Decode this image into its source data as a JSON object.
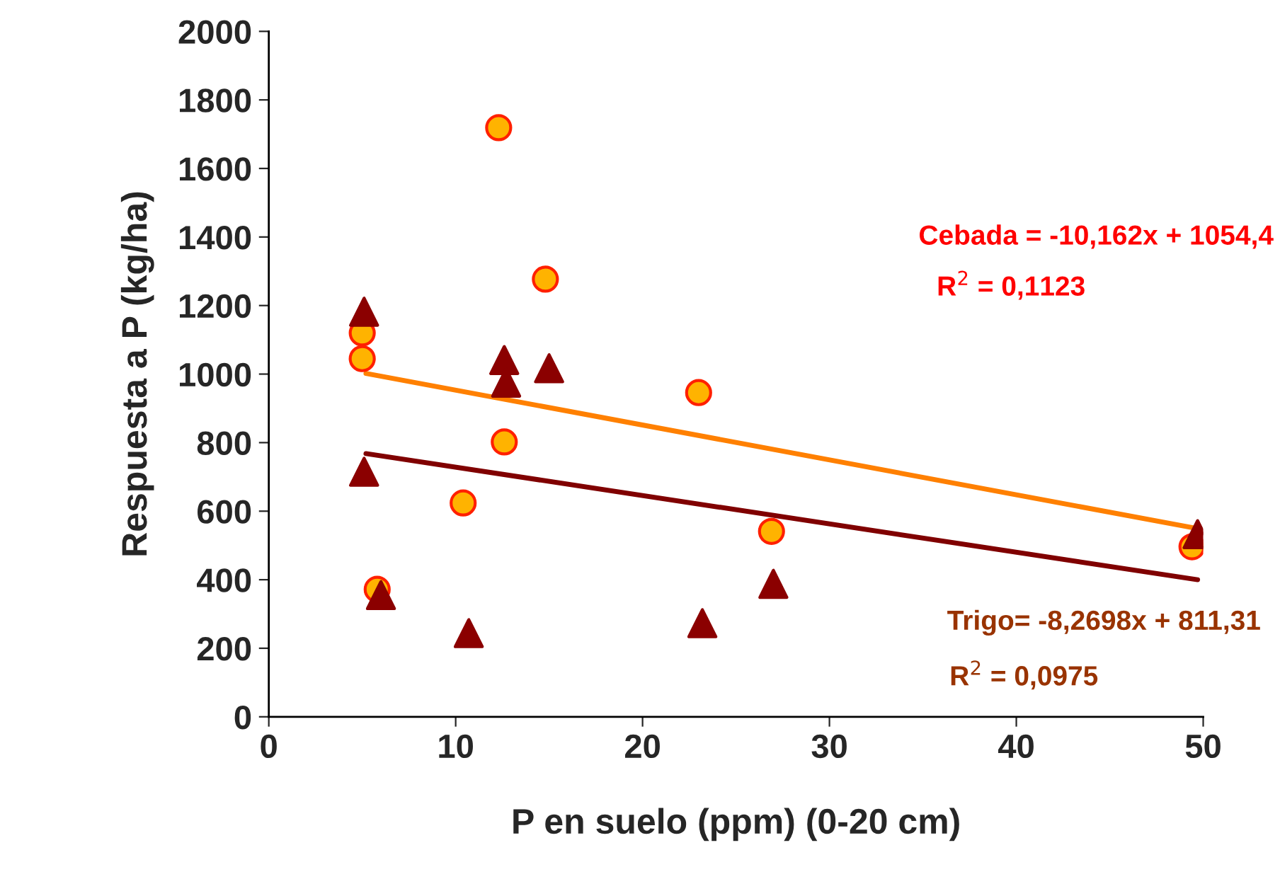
{
  "chart_data": {
    "type": "scatter",
    "xlabel": "P en suelo (ppm) (0-20 cm)",
    "ylabel": "Respuesta a P (kg/ha)",
    "xlim": [
      0,
      50
    ],
    "xticks": [
      0,
      10,
      20,
      30,
      40,
      50
    ],
    "ylim": [
      0,
      2000
    ],
    "yticks": [
      0,
      200,
      400,
      600,
      800,
      1000,
      1200,
      1400,
      1600,
      1800,
      2000
    ],
    "grid": false,
    "legend": false,
    "series": [
      {
        "marker": "circle",
        "color": "#ffb300",
        "x": [
          5.0,
          5.0,
          5.8,
          10.4,
          12.3,
          12.6,
          14.8,
          23.0,
          26.9,
          49.4
        ],
        "values": [
          1120,
          1045,
          372,
          624,
          1719,
          802,
          1277,
          946,
          541,
          496
        ]
      },
      {
        "marker": "triangle",
        "color": "#8b0000",
        "x": [
          5.1,
          5.1,
          6.0,
          10.7,
          12.6,
          12.7,
          15.0,
          23.2,
          27.0,
          49.7
        ],
        "values": [
          1182,
          715,
          355,
          244,
          1041,
          975,
          1017,
          273,
          388,
          533
        ]
      },
      {
        "type": "line",
        "marker": "none",
        "color": "#ff8000",
        "x": [
          5.2,
          49.7
        ],
        "values": [
          1002,
          549
        ]
      },
      {
        "type": "line",
        "marker": "none",
        "color": "#800000",
        "x": [
          5.2,
          49.7
        ],
        "values": [
          768,
          400
        ]
      }
    ],
    "annotations": [
      "Cebada = -10,162x + 1054,4",
      "R$^{2}$ = 0,1123",
      "Trigo= -8,2698x + 811,31",
      "R$^{2}$ = 0,0975"
    ]
  }
}
